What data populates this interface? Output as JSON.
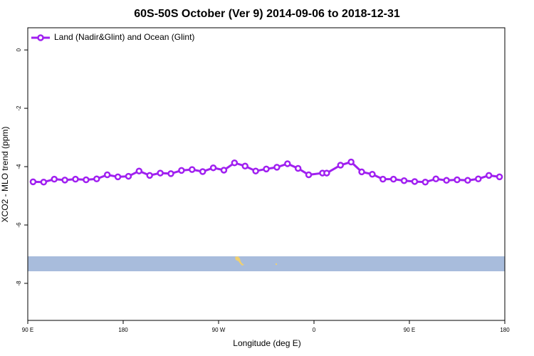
{
  "chart_data": {
    "type": "line",
    "title": "60S-50S October (Ver 9)   2014-09-06 to 2018-12-31",
    "x_label": "Longitude (deg E)",
    "y_label": "XCO2 - MLO trend (ppm)",
    "x": [
      95,
      105,
      115,
      125,
      135,
      145,
      155,
      165,
      175,
      185,
      195,
      205,
      215,
      225,
      235,
      245,
      255,
      265,
      275,
      285,
      295,
      305,
      315,
      325,
      335,
      345,
      355,
      368,
      372,
      385,
      395,
      405,
      415,
      425,
      435,
      445,
      455,
      465,
      475,
      485,
      495,
      505,
      515,
      525,
      535
    ],
    "series": [
      {
        "name": "Land (Nadir&Glint) and Ocean (Glint)",
        "color": "#a020f0",
        "values": [
          -4.52,
          -4.53,
          -4.43,
          -4.46,
          -4.43,
          -4.45,
          -4.42,
          -4.28,
          -4.35,
          -4.33,
          -4.15,
          -4.3,
          -4.22,
          -4.24,
          -4.13,
          -4.1,
          -4.17,
          -4.04,
          -4.12,
          -3.87,
          -3.98,
          -4.15,
          -4.08,
          -4.02,
          -3.9,
          -4.06,
          -4.28,
          -4.22,
          -4.22,
          -3.95,
          -3.84,
          -4.18,
          -4.26,
          -4.43,
          -4.43,
          -4.48,
          -4.51,
          -4.53,
          -4.42,
          -4.47,
          -4.45,
          -4.47,
          -4.42,
          -4.3,
          -4.35
        ]
      }
    ],
    "xlim": [
      90,
      540
    ],
    "xticks": [
      {
        "value": 90,
        "label": "90 E"
      },
      180,
      {
        "value": 270,
        "label": "90 W"
      },
      {
        "value": 360,
        "label": "0"
      },
      {
        "value": 450,
        "label": "90 E"
      },
      {
        "value": 540,
        "label": "180"
      }
    ],
    "ylim": [
      -9.27,
      0.76
    ],
    "yticks": [
      0,
      -2,
      -4,
      -6,
      -8
    ],
    "legend": "top-left"
  }
}
